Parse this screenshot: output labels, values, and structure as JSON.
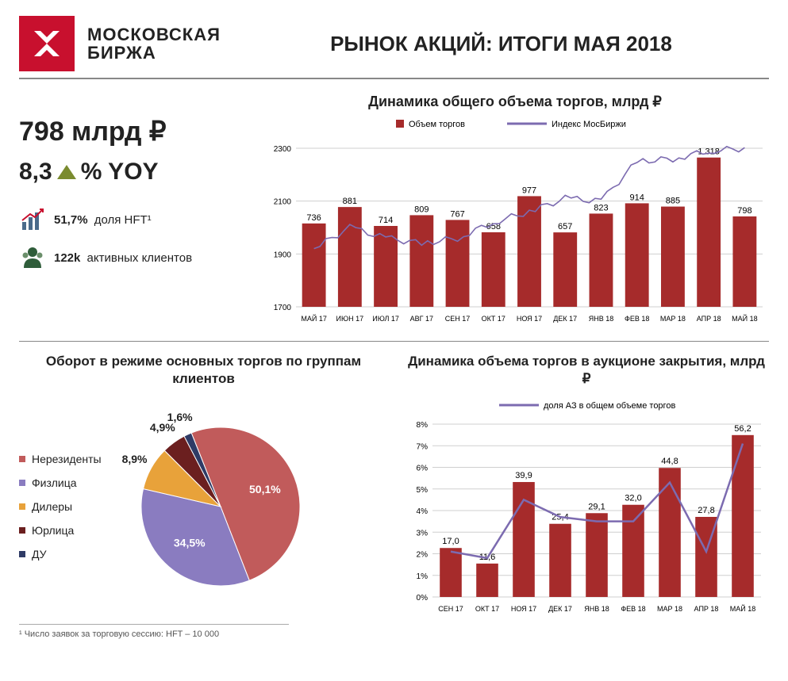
{
  "brand": {
    "line1": "МОСКОВСКАЯ",
    "line2": "БИРЖА",
    "logo_bg": "#c8102e"
  },
  "page_title": "РЫНОК АКЦИЙ: ИТОГИ МАЯ 2018",
  "kpi": {
    "volume": "798 млрд ₽",
    "yoy_value": "8,3",
    "yoy_suffix": "% YOY",
    "hft_pct": "51,7%",
    "hft_label": "доля HFT¹",
    "clients_val": "122k",
    "clients_label": "активных клиентов",
    "triangle_color": "#7a8b2f"
  },
  "bar_chart": {
    "title": "Динамика общего объема торгов, млрд ₽",
    "legend_bar": "Объем торгов",
    "legend_line": "Индекс МосБиржи",
    "type": "bar+line",
    "categories": [
      "МАЙ 17",
      "ИЮН 17",
      "ИЮЛ 17",
      "АВГ 17",
      "СЕН 17",
      "ОКТ 17",
      "НОЯ 17",
      "ДЕК 17",
      "ЯНВ 18",
      "ФЕВ 18",
      "МАР 18",
      "АПР 18",
      "МАЙ 18"
    ],
    "values": [
      736,
      881,
      714,
      809,
      767,
      658,
      977,
      657,
      823,
      914,
      885,
      1318,
      798
    ],
    "bar_color": "#a62b2b",
    "y_ticks": [
      1700,
      1900,
      2100,
      2300
    ],
    "ylim": [
      1700,
      2300
    ],
    "bar_max": 1400,
    "index_series": [
      1920,
      2000,
      1960,
      1940,
      1960,
      2020,
      2060,
      2110,
      2100,
      2250,
      2260,
      2290,
      2300
    ],
    "line_color": "#7c6bb0",
    "grid_color": "#cfcfcf",
    "label_fontsize": 10,
    "value_fontsize": 11,
    "background": "#ffffff"
  },
  "pie": {
    "title": "Оборот в режиме основных торгов по группам клиентов",
    "type": "pie",
    "slices": [
      {
        "label": "Нерезиденты",
        "value": 50.1,
        "display": "50,1%",
        "color": "#c15b5b"
      },
      {
        "label": "Физлица",
        "value": 34.5,
        "display": "34,5%",
        "color": "#8a7cc0"
      },
      {
        "label": "Дилеры",
        "value": 8.9,
        "display": "8,9%",
        "color": "#e8a23a"
      },
      {
        "label": "Юрлица",
        "value": 4.9,
        "display": "4,9%",
        "color": "#6b1f1f"
      },
      {
        "label": "ДУ",
        "value": 1.6,
        "display": "1,6%",
        "color": "#2f3b66"
      }
    ],
    "label_fontsize": 14
  },
  "close_chart": {
    "title": "Динамика объема торгов в аукционе закрытия, млрд ₽",
    "legend_line": "доля АЗ в общем объеме торгов",
    "type": "bar+line",
    "categories": [
      "СЕН 17",
      "ОКТ 17",
      "НОЯ 17",
      "ДЕК 17",
      "ЯНВ 18",
      "ФЕВ 18",
      "МАР 18",
      "АПР 18",
      "МАЙ 18"
    ],
    "bar_values": [
      17.0,
      11.6,
      39.9,
      25.4,
      29.1,
      32.0,
      44.8,
      27.8,
      56.2
    ],
    "bar_labels": [
      "17,0",
      "11,6",
      "39,9",
      "25,4",
      "29,1",
      "32,0",
      "44,8",
      "27,8",
      "56,2"
    ],
    "bar_color": "#a62b2b",
    "line_values": [
      2.1,
      1.8,
      4.5,
      3.7,
      3.5,
      3.5,
      5.3,
      2.1,
      7.1
    ],
    "line_color": "#7c6bb0",
    "y_ticks_pct": [
      0,
      1,
      2,
      3,
      4,
      5,
      6,
      7,
      8
    ],
    "ylim_pct": [
      0,
      8
    ],
    "bar_max": 60,
    "grid_color": "#cfcfcf",
    "label_fontsize": 10
  },
  "footnote": "¹ Число заявок за торговую сессию: HFT – 10 000"
}
